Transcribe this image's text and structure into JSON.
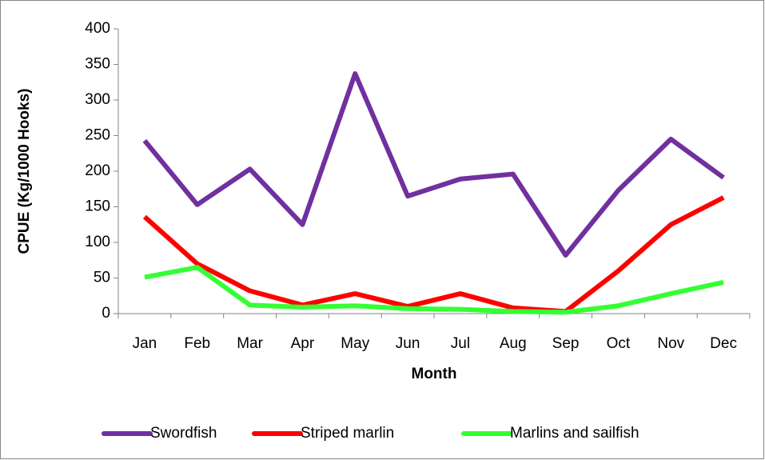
{
  "chart_data": {
    "type": "line",
    "x_label": "Month",
    "y_label": "CPUE (Kg/1000 Hooks)",
    "categories": [
      "Jan",
      "Feb",
      "Mar",
      "Apr",
      "May",
      "Jun",
      "Jul",
      "Aug",
      "Sep",
      "Oct",
      "Nov",
      "Dec"
    ],
    "series": [
      {
        "name": "Swordfish",
        "color": "#7030a0",
        "values": [
          243,
          153,
          203,
          125,
          337,
          165,
          189,
          196,
          82,
          173,
          245,
          191
        ]
      },
      {
        "name": "Striped marlin",
        "color": "#ff0000",
        "values": [
          136,
          70,
          32,
          12,
          28,
          10,
          28,
          8,
          3,
          60,
          125,
          163
        ]
      },
      {
        "name": "Marlins and sailfish",
        "color": "#33ff33",
        "values": [
          51,
          65,
          12,
          9,
          11,
          7,
          6,
          3,
          2,
          11,
          28,
          44
        ]
      }
    ],
    "ylim": [
      0,
      400
    ],
    "yticks": [
      0,
      50,
      100,
      150,
      200,
      250,
      300,
      350,
      400
    ],
    "grid": false,
    "legend": "bottom"
  }
}
